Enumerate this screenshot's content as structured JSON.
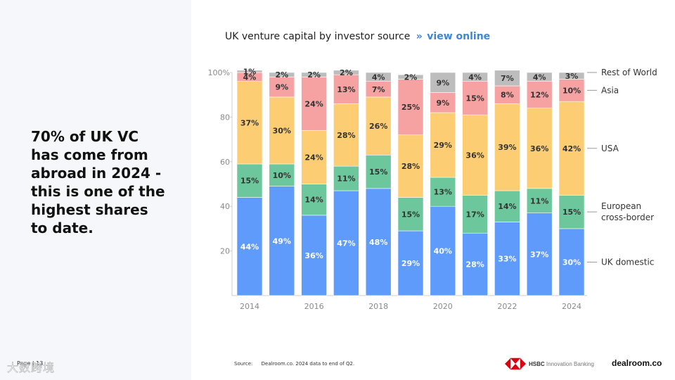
{
  "headline": "70% of UK VC\nhas come from\nabroad in 2024 -\nthis is one of the\nhighest shares\nto date.",
  "page_label": "Page | 13",
  "watermark": "大数跨境",
  "title": {
    "text": "UK venture capital by investor source",
    "chevron": "»",
    "link": "view online"
  },
  "source": {
    "label": "Source:",
    "text": "Dealroom.co. 2024 data to end of Q2."
  },
  "logos": {
    "hsbc": "HSBC",
    "hsbc_sub": "Innovation Banking",
    "dealroom": "dealroom.co"
  },
  "colors": {
    "uk_domestic": "#5f9bfa",
    "european": "#6cc89c",
    "usa": "#fccd72",
    "asia": "#f6a1a2",
    "rest_of_world": "#bdbdbd",
    "link": "#3d86d6"
  },
  "chart_data": {
    "type": "bar",
    "stacked": true,
    "title": "UK venture capital by investor source",
    "categories": [
      "2014",
      "2015",
      "2016",
      "2017",
      "2018",
      "2019",
      "2020",
      "2021",
      "2022",
      "2023",
      "2024"
    ],
    "x_tick_labels": [
      "2014",
      "",
      "2016",
      "",
      "2018",
      "",
      "2020",
      "",
      "2022",
      "",
      "2024"
    ],
    "y_ticks": [
      "20",
      "40",
      "60",
      "80",
      "100%"
    ],
    "ylim": [
      0,
      100
    ],
    "grid": false,
    "legend_position": "right, aligned with 2024 bar segments",
    "series": [
      {
        "name": "UK domestic",
        "color": "#5f9bfa",
        "values": [
          44,
          49,
          36,
          47,
          48,
          29,
          40,
          28,
          33,
          37,
          30
        ]
      },
      {
        "name": "European\ncross-border",
        "color": "#6cc89c",
        "values": [
          15,
          10,
          14,
          11,
          15,
          15,
          13,
          17,
          14,
          11,
          15
        ]
      },
      {
        "name": "USA",
        "color": "#fccd72",
        "values": [
          37,
          30,
          24,
          28,
          26,
          28,
          29,
          36,
          39,
          36,
          42
        ]
      },
      {
        "name": "Asia",
        "color": "#f6a1a2",
        "values": [
          4,
          9,
          24,
          13,
          7,
          25,
          9,
          15,
          8,
          12,
          10
        ]
      },
      {
        "name": "Rest of World",
        "color": "#bdbdbd",
        "values": [
          1,
          2,
          2,
          2,
          4,
          2,
          9,
          4,
          7,
          4,
          3
        ]
      }
    ]
  }
}
